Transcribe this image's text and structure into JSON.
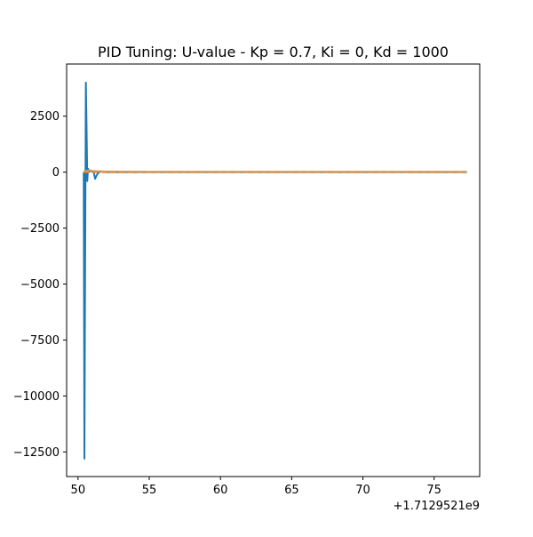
{
  "chart_data": {
    "type": "line",
    "title": "PID Tuning: U-value - Kp = 0.7, Ki = 0, Kd = 1000",
    "xlabel": "",
    "ylabel": "",
    "x_offset_label": "+1.7129521e9",
    "xlim": [
      49.2,
      78.2
    ],
    "ylim": [
      -13600,
      4830
    ],
    "x_ticks": [
      50,
      55,
      60,
      65,
      70,
      75
    ],
    "x_tick_labels": [
      "50",
      "55",
      "60",
      "65",
      "70",
      "75"
    ],
    "y_ticks": [
      2500,
      0,
      -2500,
      -5000,
      -7500,
      -10000,
      -12500
    ],
    "y_tick_labels": [
      "2500",
      "0",
      "−2500",
      "−5000",
      "−7500",
      "−10000",
      "−12500"
    ],
    "grid": false,
    "legend": "none",
    "series": [
      {
        "color": "#1f77b4",
        "style": "solid",
        "x": [
          50.4,
          50.45,
          50.5,
          50.55,
          50.6,
          50.65,
          50.7,
          50.75,
          50.8,
          50.9,
          51.0,
          51.1,
          51.2,
          51.3,
          51.4,
          51.5,
          51.6,
          51.8,
          52.0,
          52.5,
          53.0,
          55.0,
          60.0,
          65.0,
          70.0,
          75.0,
          77.3
        ],
        "y": [
          0,
          -12800,
          -4000,
          4000,
          2000,
          -400,
          150,
          100,
          20,
          60,
          20,
          0,
          -300,
          -150,
          -50,
          0,
          40,
          10,
          0,
          0,
          0,
          0,
          0,
          0,
          0,
          0,
          0
        ]
      },
      {
        "color": "#ff7f0e",
        "style": "dashed",
        "x": [
          50.4,
          77.3
        ],
        "y": [
          0,
          0
        ]
      },
      {
        "color": "#d89a5a",
        "style": "solid",
        "x": [
          50.4,
          50.6,
          50.8,
          51.0,
          51.5,
          52.0,
          55.0,
          60.0,
          65.0,
          70.0,
          75.0,
          77.3
        ],
        "y": [
          30,
          60,
          80,
          60,
          40,
          30,
          20,
          20,
          20,
          20,
          20,
          20
        ]
      }
    ]
  }
}
